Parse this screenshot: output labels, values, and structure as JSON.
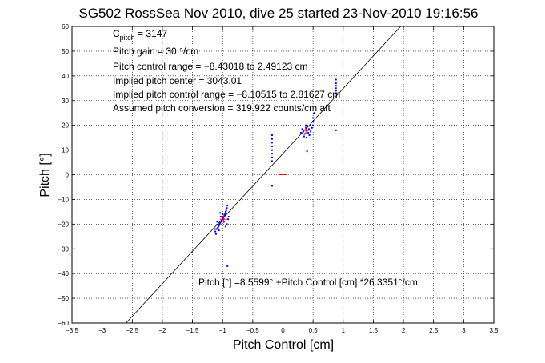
{
  "chart_data": {
    "type": "scatter",
    "title": "SG502 RossSea Nov 2010, dive 25 started 23-Nov-2010 19:16:56",
    "xlabel": "Pitch Control [cm]",
    "ylabel": "Pitch [°]",
    "xlim": [
      -3.5,
      3.5
    ],
    "ylim": [
      -60,
      60
    ],
    "xticks": [
      -3.5,
      -3,
      -2.5,
      -2,
      -1.5,
      -1,
      -0.5,
      0,
      0.5,
      1,
      1.5,
      2,
      2.5,
      3,
      3.5
    ],
    "yticks": [
      -60,
      -50,
      -40,
      -30,
      -20,
      -10,
      0,
      10,
      20,
      30,
      40,
      50,
      60
    ],
    "xtick_labels": [
      "−3.5",
      "−3",
      "−2.5",
      "−2",
      "−1.5",
      "−1",
      "−0.5",
      "0",
      "0.5",
      "1",
      "1.5",
      "2",
      "2.5",
      "3",
      "3.5"
    ],
    "ytick_labels": [
      "−60",
      "−50",
      "−40",
      "−30",
      "−20",
      "−10",
      "0",
      "10",
      "20",
      "30",
      "40",
      "50",
      "60"
    ],
    "grid": true,
    "annotations": {
      "c_pitch_main": "C",
      "c_pitch_sub": "pitch",
      "c_pitch_value": " = 3147",
      "pitch_gain": "Pitch gain = 30 °/cm",
      "control_range": "Pitch control range = −8.43018 to 2.49123 cm",
      "implied_center": "Implied pitch center = 3043.01",
      "implied_range": "Implied pitch control range = −8.10515 to 2.81627 cm",
      "assumed_conversion": "Assumed pitch conversion = 319.922 counts/cm aft",
      "fit_equation": "Pitch [°] =8.5599° +Pitch Control [cm] *26.3351°/cm"
    },
    "fit_line": {
      "intercept": 8.5599,
      "slope": 26.3351
    },
    "series": [
      {
        "color": "#0000ff",
        "marker": "dot",
        "points": [
          [
            -1.12,
            -23
          ],
          [
            -1.1,
            -22
          ],
          [
            -1.08,
            -21.5
          ],
          [
            -1.07,
            -21
          ],
          [
            -1.06,
            -20.5
          ],
          [
            -1.05,
            -20
          ],
          [
            -1.04,
            -19.5
          ],
          [
            -1.02,
            -19
          ],
          [
            -1.01,
            -18.5
          ],
          [
            -1.0,
            -18
          ],
          [
            -0.99,
            -17.5
          ],
          [
            -0.98,
            -17
          ],
          [
            -0.97,
            -16.5
          ],
          [
            -0.96,
            -16
          ],
          [
            -0.95,
            -15
          ],
          [
            -0.94,
            -14.5
          ],
          [
            -0.93,
            -13.5
          ],
          [
            -0.92,
            -12.5
          ],
          [
            -0.98,
            -19
          ],
          [
            -1.03,
            -17
          ],
          [
            -1.09,
            -19
          ],
          [
            -0.91,
            -18
          ],
          [
            -0.93,
            -20
          ],
          [
            -1.0,
            -16
          ],
          [
            -1.06,
            -22.5
          ],
          [
            -1.11,
            -24
          ],
          [
            -1.13,
            -22
          ],
          [
            -0.95,
            -21
          ],
          [
            -0.9,
            -17
          ],
          [
            -1.04,
            -15.5
          ],
          [
            -0.92,
            -37
          ],
          [
            -0.18,
            16
          ],
          [
            -0.18,
            14.5
          ],
          [
            -0.18,
            13
          ],
          [
            -0.18,
            11.5
          ],
          [
            -0.18,
            10
          ],
          [
            -0.18,
            8.5
          ],
          [
            -0.18,
            7
          ],
          [
            -0.18,
            5.5
          ],
          [
            -0.18,
            -4.5
          ],
          [
            0.32,
            18.5
          ],
          [
            0.34,
            17.5
          ],
          [
            0.36,
            16.5
          ],
          [
            0.38,
            19
          ],
          [
            0.4,
            18
          ],
          [
            0.42,
            17
          ],
          [
            0.44,
            16
          ],
          [
            0.35,
            15.5
          ],
          [
            0.38,
            20
          ],
          [
            0.41,
            19.5
          ],
          [
            0.43,
            18.5
          ],
          [
            0.3,
            17
          ],
          [
            0.46,
            17.5
          ],
          [
            0.39,
            15
          ],
          [
            0.48,
            19
          ],
          [
            0.5,
            20
          ],
          [
            0.5,
            21.5
          ],
          [
            0.5,
            23
          ],
          [
            0.52,
            25
          ],
          [
            0.4,
            9.5
          ],
          [
            0.88,
            33
          ],
          [
            0.88,
            34
          ],
          [
            0.88,
            35
          ],
          [
            0.88,
            36
          ],
          [
            0.88,
            37
          ],
          [
            0.88,
            38.5
          ],
          [
            0.88,
            18
          ]
        ]
      },
      {
        "color": "#ff0000",
        "marker": "plus",
        "points": [
          [
            -0.98,
            -18
          ],
          [
            0.38,
            18
          ],
          [
            0.0,
            0.0
          ]
        ]
      }
    ]
  }
}
